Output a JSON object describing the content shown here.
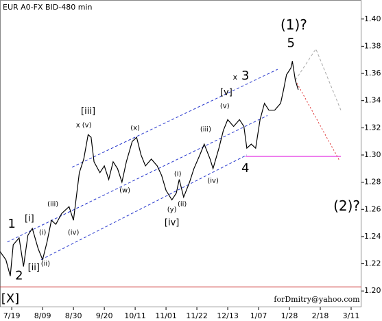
{
  "chart_data": {
    "type": "line",
    "title": "EUR A0-FX BID-480 min",
    "footer": "forDmitry@yahoo.com",
    "color": "#000000",
    "x": [
      0,
      4,
      7,
      9,
      13,
      16,
      19,
      22,
      26,
      29,
      32,
      35,
      38,
      42,
      47,
      50,
      54,
      57,
      60,
      62,
      64,
      68,
      71,
      74,
      77,
      80,
      83,
      86,
      90,
      93,
      96,
      99,
      103,
      107,
      110,
      113,
      117,
      120,
      122,
      125,
      129,
      132,
      136,
      139,
      143,
      145,
      149,
      152,
      155,
      159,
      163,
      166,
      168,
      171,
      174,
      177,
      180,
      183,
      187,
      191,
      193,
      195,
      198,
      199,
      201,
      203
    ],
    "values": [
      1.229,
      1.223,
      1.211,
      1.234,
      1.239,
      1.218,
      1.241,
      1.246,
      1.231,
      1.223,
      1.236,
      1.252,
      1.249,
      1.257,
      1.262,
      1.252,
      1.287,
      1.297,
      1.315,
      1.313,
      1.295,
      1.287,
      1.292,
      1.282,
      1.295,
      1.29,
      1.28,
      1.295,
      1.31,
      1.313,
      1.3,
      1.292,
      1.297,
      1.292,
      1.285,
      1.274,
      1.267,
      1.272,
      1.282,
      1.269,
      1.28,
      1.29,
      1.3,
      1.308,
      1.297,
      1.29,
      1.305,
      1.318,
      1.326,
      1.321,
      1.326,
      1.321,
      1.305,
      1.308,
      1.305,
      1.326,
      1.338,
      1.333,
      1.333,
      1.338,
      1.348,
      1.359,
      1.364,
      1.369,
      1.355,
      1.348
    ],
    "xlim": [
      0,
      246
    ],
    "xticks": [
      {
        "value": 8,
        "label": "7/19"
      },
      {
        "value": 29,
        "label": "8/09"
      },
      {
        "value": 50,
        "label": "8/30"
      },
      {
        "value": 71,
        "label": "9/20"
      },
      {
        "value": 92,
        "label": "10/11"
      },
      {
        "value": 113,
        "label": "11/01"
      },
      {
        "value": 134,
        "label": "11/22"
      },
      {
        "value": 155,
        "label": "12/13"
      },
      {
        "value": 176,
        "label": "1/07"
      },
      {
        "value": 197,
        "label": "1/28"
      },
      {
        "value": 218,
        "label": "2/18"
      },
      {
        "value": 239,
        "label": "3/11"
      }
    ],
    "ylim": [
      1.188,
      1.414
    ],
    "yticks": [
      {
        "value": 1.2,
        "label": "1.20"
      },
      1.22,
      1.24,
      1.26,
      1.28,
      {
        "value": 1.3,
        "label": "1.30"
      },
      1.32,
      1.34,
      1.36,
      1.38,
      {
        "value": 1.4,
        "label": "1.40"
      }
    ],
    "lines": [
      {
        "color": "#cc3333",
        "dash": "solid",
        "x": [
          0,
          246
        ],
        "y": [
          1.203,
          1.203
        ]
      },
      {
        "color": "#dd00dd",
        "dash": "solid",
        "x": [
          167,
          232
        ],
        "y": [
          1.299,
          1.299
        ]
      },
      {
        "color": "#2233cc",
        "dash": "dashed",
        "x": [
          49,
          189
        ],
        "y": [
          1.291,
          1.363
        ]
      },
      {
        "color": "#2233cc",
        "dash": "dashed",
        "x": [
          5,
          182
        ],
        "y": [
          1.236,
          1.329
        ]
      },
      {
        "color": "#2233cc",
        "dash": "dashed",
        "x": [
          28,
          168
        ],
        "y": [
          1.223,
          1.3
        ]
      },
      {
        "color": "#aaaaaa",
        "dash": "dashed",
        "x": [
          201,
          215,
          232
        ],
        "y": [
          1.355,
          1.378,
          1.333
        ]
      },
      {
        "color": "#dd2222",
        "dash": "dotted",
        "x": [
          201,
          231
        ],
        "y": [
          1.355,
          1.296
        ]
      }
    ],
    "annotations": [
      {
        "text": "(1)?",
        "x": 200,
        "y": 1.395,
        "color": "#1a1a80",
        "size": 20
      },
      {
        "text": "5",
        "x": 198,
        "y": 1.382,
        "color": "#8b1a1a",
        "size": 18
      },
      {
        "text": "x",
        "x": 160,
        "y": 1.357,
        "color": "#000000",
        "size": 11
      },
      {
        "text": "3",
        "x": 167,
        "y": 1.358,
        "color": "#8b1a1a",
        "size": 18
      },
      {
        "text": "[v]",
        "x": 154,
        "y": 1.346,
        "color": "#2a8a2a",
        "size": 13
      },
      {
        "text": "(v)",
        "x": 153,
        "y": 1.336,
        "color": "#000000",
        "size": 10
      },
      {
        "text": "[iii]",
        "x": 60,
        "y": 1.332,
        "color": "#2a8a2a",
        "size": 13
      },
      {
        "text": "x (v)",
        "x": 57,
        "y": 1.322,
        "color": "#000000",
        "size": 10
      },
      {
        "text": "(x)",
        "x": 92,
        "y": 1.32,
        "color": "#000000",
        "size": 10
      },
      {
        "text": "(iii)",
        "x": 140,
        "y": 1.319,
        "color": "#000000",
        "size": 10
      },
      {
        "text": "(w)",
        "x": 85,
        "y": 1.274,
        "color": "#000000",
        "size": 10
      },
      {
        "text": "(i)",
        "x": 121,
        "y": 1.286,
        "color": "#000000",
        "size": 10
      },
      {
        "text": "(iv)",
        "x": 145,
        "y": 1.281,
        "color": "#000000",
        "size": 10
      },
      {
        "text": "4",
        "x": 167,
        "y": 1.29,
        "color": "#8b1a1a",
        "size": 18
      },
      {
        "text": "(ii)",
        "x": 124,
        "y": 1.264,
        "color": "#000000",
        "size": 10
      },
      {
        "text": "(y)",
        "x": 117,
        "y": 1.26,
        "color": "#000000",
        "size": 10
      },
      {
        "text": "[iv]",
        "x": 117,
        "y": 1.25,
        "color": "#2a8a2a",
        "size": 13
      },
      {
        "text": "(2)?",
        "x": 236,
        "y": 1.262,
        "color": "#1a1a80",
        "size": 20
      },
      {
        "text": "(iii)",
        "x": 36,
        "y": 1.264,
        "color": "#000000",
        "size": 10
      },
      {
        "text": "(iv)",
        "x": 50,
        "y": 1.243,
        "color": "#000000",
        "size": 10
      },
      {
        "text": "(i)",
        "x": 29,
        "y": 1.243,
        "color": "#000000",
        "size": 10
      },
      {
        "text": "(ii)",
        "x": 31,
        "y": 1.22,
        "color": "#000000",
        "size": 10
      },
      {
        "text": "[i]",
        "x": 20,
        "y": 1.253,
        "color": "#2a8a2a",
        "size": 13
      },
      {
        "text": "[ii]",
        "x": 23,
        "y": 1.217,
        "color": "#2a8a2a",
        "size": 13
      },
      {
        "text": "1",
        "x": 8,
        "y": 1.249,
        "color": "#8b1a1a",
        "size": 18
      },
      {
        "text": "2",
        "x": 13,
        "y": 1.211,
        "color": "#8b1a1a",
        "size": 18
      },
      {
        "text": "[X]",
        "x": 7,
        "y": 1.194,
        "color": "#2a8a2a",
        "size": 18
      }
    ]
  }
}
